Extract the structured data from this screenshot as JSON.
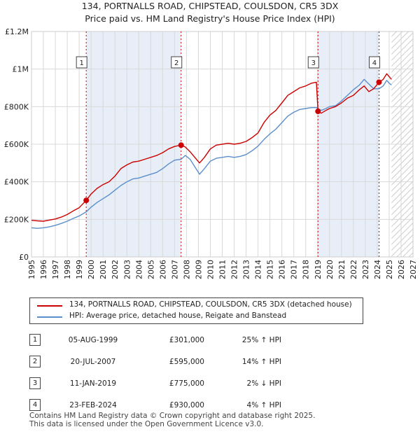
{
  "chart_data": {
    "type": "line",
    "title_line1": "134, PORTNALLS ROAD, CHIPSTEAD, COULSDON, CR5 3DX",
    "title_line2": "Price paid vs. HM Land Registry's House Price Index (HPI)",
    "xlim": [
      1995,
      2027
    ],
    "ylim": [
      0,
      1200000
    ],
    "x_ticks": [
      "1995",
      "1996",
      "1997",
      "1998",
      "1999",
      "2000",
      "2001",
      "2002",
      "2003",
      "2004",
      "2005",
      "2006",
      "2007",
      "2008",
      "2009",
      "2010",
      "2011",
      "2012",
      "2013",
      "2014",
      "2015",
      "2016",
      "2017",
      "2018",
      "2019",
      "2020",
      "2021",
      "2022",
      "2023",
      "2024",
      "2025",
      "2026",
      "2027"
    ],
    "y_ticks": [
      {
        "value": 0,
        "label": "£0"
      },
      {
        "value": 200000,
        "label": "£200K"
      },
      {
        "value": 400000,
        "label": "£400K"
      },
      {
        "value": 600000,
        "label": "£600K"
      },
      {
        "value": 800000,
        "label": "£800K"
      },
      {
        "value": 1000000,
        "label": "£1M"
      },
      {
        "value": 1200000,
        "label": "£1.2M"
      }
    ],
    "forecast_start": 2025.2,
    "series": [
      {
        "name": "134, PORTNALLS ROAD, CHIPSTEAD, COULSDON, CR5 3DX (detached house)",
        "color": "#cc0000",
        "points": [
          [
            1995.0,
            195000
          ],
          [
            1995.5,
            192000
          ],
          [
            1996.0,
            190000
          ],
          [
            1996.5,
            196000
          ],
          [
            1997.0,
            202000
          ],
          [
            1997.5,
            212000
          ],
          [
            1998.0,
            226000
          ],
          [
            1998.5,
            245000
          ],
          [
            1999.0,
            262000
          ],
          [
            1999.59,
            301000
          ],
          [
            2000.0,
            335000
          ],
          [
            2000.5,
            365000
          ],
          [
            2001.0,
            385000
          ],
          [
            2001.5,
            400000
          ],
          [
            2002.0,
            430000
          ],
          [
            2002.5,
            470000
          ],
          [
            2003.0,
            490000
          ],
          [
            2003.5,
            505000
          ],
          [
            2004.0,
            510000
          ],
          [
            2004.5,
            520000
          ],
          [
            2005.0,
            530000
          ],
          [
            2005.5,
            540000
          ],
          [
            2006.0,
            555000
          ],
          [
            2006.5,
            575000
          ],
          [
            2007.0,
            588000
          ],
          [
            2007.55,
            595000
          ],
          [
            2007.9,
            585000
          ],
          [
            2008.3,
            560000
          ],
          [
            2008.7,
            530000
          ],
          [
            2009.1,
            500000
          ],
          [
            2009.5,
            530000
          ],
          [
            2010.0,
            575000
          ],
          [
            2010.5,
            595000
          ],
          [
            2011.0,
            600000
          ],
          [
            2011.5,
            605000
          ],
          [
            2012.0,
            600000
          ],
          [
            2012.5,
            605000
          ],
          [
            2013.0,
            615000
          ],
          [
            2013.5,
            635000
          ],
          [
            2014.0,
            660000
          ],
          [
            2014.5,
            715000
          ],
          [
            2015.0,
            755000
          ],
          [
            2015.5,
            780000
          ],
          [
            2016.0,
            820000
          ],
          [
            2016.5,
            860000
          ],
          [
            2017.0,
            880000
          ],
          [
            2017.5,
            900000
          ],
          [
            2018.0,
            910000
          ],
          [
            2018.5,
            925000
          ],
          [
            2018.9,
            930000
          ],
          [
            2019.03,
            775000
          ],
          [
            2019.3,
            765000
          ],
          [
            2019.7,
            780000
          ],
          [
            2020.0,
            790000
          ],
          [
            2020.5,
            800000
          ],
          [
            2021.0,
            820000
          ],
          [
            2021.5,
            845000
          ],
          [
            2022.0,
            860000
          ],
          [
            2022.5,
            890000
          ],
          [
            2022.9,
            910000
          ],
          [
            2023.3,
            880000
          ],
          [
            2023.7,
            895000
          ],
          [
            2024.15,
            930000
          ],
          [
            2024.5,
            945000
          ],
          [
            2024.8,
            975000
          ],
          [
            2025.0,
            960000
          ],
          [
            2025.2,
            945000
          ]
        ]
      },
      {
        "name": "HPI: Average price, detached house, Reigate and Banstead",
        "color": "#5b8fcc",
        "points": [
          [
            1995.0,
            155000
          ],
          [
            1995.5,
            152000
          ],
          [
            1996.0,
            155000
          ],
          [
            1996.5,
            160000
          ],
          [
            1997.0,
            168000
          ],
          [
            1997.5,
            178000
          ],
          [
            1998.0,
            190000
          ],
          [
            1998.5,
            205000
          ],
          [
            1999.0,
            218000
          ],
          [
            1999.59,
            240000
          ],
          [
            2000.0,
            265000
          ],
          [
            2000.5,
            290000
          ],
          [
            2001.0,
            310000
          ],
          [
            2001.5,
            330000
          ],
          [
            2002.0,
            355000
          ],
          [
            2002.5,
            380000
          ],
          [
            2003.0,
            400000
          ],
          [
            2003.5,
            415000
          ],
          [
            2004.0,
            420000
          ],
          [
            2004.5,
            430000
          ],
          [
            2005.0,
            440000
          ],
          [
            2005.5,
            450000
          ],
          [
            2006.0,
            470000
          ],
          [
            2006.5,
            495000
          ],
          [
            2007.0,
            515000
          ],
          [
            2007.55,
            520000
          ],
          [
            2007.9,
            540000
          ],
          [
            2008.3,
            520000
          ],
          [
            2008.7,
            480000
          ],
          [
            2009.1,
            440000
          ],
          [
            2009.5,
            470000
          ],
          [
            2010.0,
            510000
          ],
          [
            2010.5,
            525000
          ],
          [
            2011.0,
            530000
          ],
          [
            2011.5,
            535000
          ],
          [
            2012.0,
            530000
          ],
          [
            2012.5,
            535000
          ],
          [
            2013.0,
            545000
          ],
          [
            2013.5,
            565000
          ],
          [
            2014.0,
            590000
          ],
          [
            2014.5,
            625000
          ],
          [
            2015.0,
            655000
          ],
          [
            2015.5,
            680000
          ],
          [
            2016.0,
            715000
          ],
          [
            2016.5,
            750000
          ],
          [
            2017.0,
            770000
          ],
          [
            2017.5,
            785000
          ],
          [
            2018.0,
            790000
          ],
          [
            2018.5,
            795000
          ],
          [
            2018.9,
            795000
          ],
          [
            2019.03,
            790000
          ],
          [
            2019.3,
            780000
          ],
          [
            2019.7,
            790000
          ],
          [
            2020.0,
            800000
          ],
          [
            2020.5,
            805000
          ],
          [
            2021.0,
            830000
          ],
          [
            2021.5,
            860000
          ],
          [
            2022.0,
            890000
          ],
          [
            2022.5,
            915000
          ],
          [
            2022.9,
            945000
          ],
          [
            2023.3,
            920000
          ],
          [
            2023.7,
            895000
          ],
          [
            2024.15,
            895000
          ],
          [
            2024.5,
            910000
          ],
          [
            2024.8,
            940000
          ],
          [
            2025.0,
            925000
          ],
          [
            2025.2,
            915000
          ]
        ]
      }
    ],
    "transactions": [
      {
        "num": "1",
        "x": 1999.59,
        "price": 301000,
        "date": "05-AUG-1999",
        "price_label": "£301,000",
        "hpi": "25% ↑ HPI"
      },
      {
        "num": "2",
        "x": 2007.55,
        "price": 595000,
        "date": "20-JUL-2007",
        "price_label": "£595,000",
        "hpi": "14% ↑ HPI"
      },
      {
        "num": "3",
        "x": 2019.03,
        "price": 775000,
        "date": "11-JAN-2019",
        "price_label": "£775,000",
        "hpi": "2% ↓ HPI"
      },
      {
        "num": "4",
        "x": 2024.15,
        "price": 930000,
        "date": "23-FEB-2024",
        "price_label": "£930,000",
        "hpi": "4% ↑ HPI"
      }
    ]
  },
  "footer": {
    "line1": "Contains HM Land Registry data © Crown copyright and database right 2025.",
    "line2": "This data is licensed under the Open Government Licence v3.0."
  }
}
